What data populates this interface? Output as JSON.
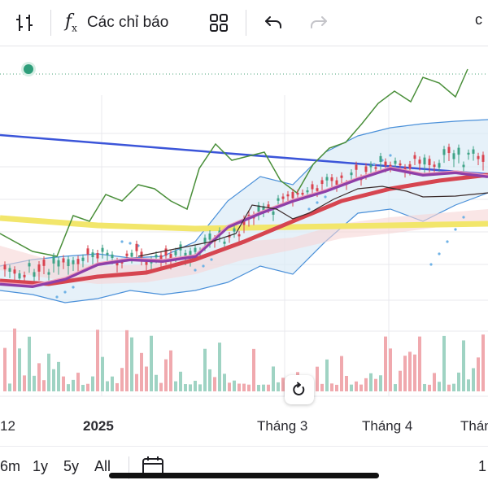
{
  "toolbar": {
    "indicators_label": "Các chỉ báo",
    "right_text": "c",
    "icons": [
      "candle-type-icon",
      "fx-icon",
      "layout-grid-icon",
      "undo-icon",
      "redo-icon"
    ]
  },
  "chart": {
    "x_labels": [
      "12",
      "2025",
      "Tháng 3",
      "Tháng 4",
      "Tháng"
    ],
    "status_color": "#2e9e7a"
  },
  "ranges": [
    "6m",
    "1y",
    "5y",
    "All"
  ],
  "bottom_right_text": "1",
  "chart_data": {
    "type": "candlestick-with-indicators",
    "x_tick_labels": [
      "12",
      "2025",
      "Tháng 3",
      "Tháng 4",
      "Tháng"
    ],
    "series": [
      {
        "type": "line",
        "color": "#3b55d9"
      },
      {
        "type": "line",
        "color": "#f2e66b"
      },
      {
        "type": "line",
        "color": "#d64550"
      },
      {
        "type": "line",
        "color": "#8e3fa8"
      },
      {
        "type": "line",
        "color": "#4a8f3a"
      },
      {
        "type": "band",
        "color": "#4a90d9"
      },
      {
        "type": "volume"
      }
    ]
  }
}
